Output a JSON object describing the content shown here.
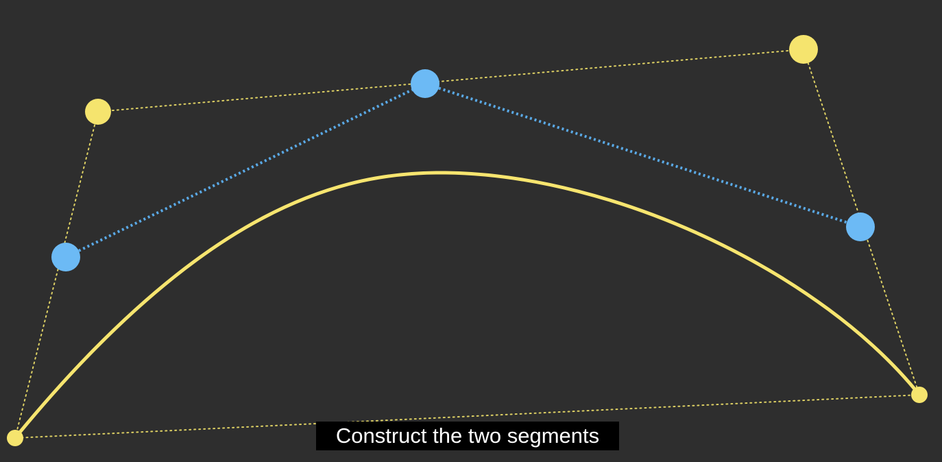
{
  "caption": {
    "text": "Construct the two segments"
  },
  "colors": {
    "background": "#2e2e2e",
    "curve": "#f7e56f",
    "control_point": "#f5e46e",
    "construction_point": "#6cbaf5",
    "construction_line": "#5aa9e6",
    "caption_bg": "#000000",
    "caption_text": "#ffffff"
  }
}
